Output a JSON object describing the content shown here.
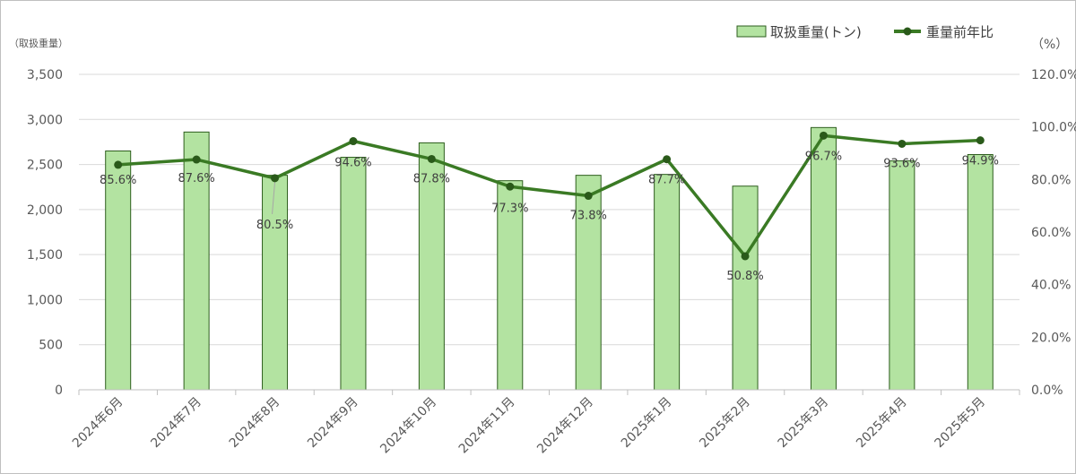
{
  "chart_data": {
    "type": "bar",
    "categories": [
      "2024年6月",
      "2024年7月",
      "2024年8月",
      "2024年9月",
      "2024年10月",
      "2024年11月",
      "2024年12月",
      "2025年1月",
      "2025年2月",
      "2025年3月",
      "2025年4月",
      "2025年5月"
    ],
    "series": [
      {
        "name": "取扱重量(トン)",
        "type": "bar",
        "axis": "left",
        "values": [
          2650,
          2860,
          2380,
          2580,
          2740,
          2320,
          2380,
          2390,
          2260,
          2910,
          2540,
          2610
        ]
      },
      {
        "name": "重量前年比",
        "type": "line",
        "axis": "right",
        "values": [
          85.6,
          87.6,
          80.5,
          94.6,
          87.8,
          77.3,
          73.8,
          87.7,
          50.8,
          96.7,
          93.6,
          94.9
        ],
        "labels": [
          "85.6%",
          "87.6%",
          "80.5%",
          "94.6%",
          "87.8%",
          "77.3%",
          "73.8%",
          "87.7%",
          "50.8%",
          "96.7%",
          "93.6%",
          "94.9%"
        ]
      }
    ],
    "ylabel_left": "（取扱重量）",
    "ylabel_right": "（%）",
    "ylim_left": [
      0,
      3500
    ],
    "ylim_right": [
      0,
      120
    ],
    "yticks_left": [
      "0",
      "500",
      "1,000",
      "1,500",
      "2,000",
      "2,500",
      "3,000",
      "3,500"
    ],
    "yticks_right": [
      "0.0%",
      "20.0%",
      "40.0%",
      "60.0%",
      "80.0%",
      "100.0%",
      "120.0%"
    ],
    "grid": true,
    "legend": "top-right",
    "colors": {
      "bar_fill": "#b3e3a1",
      "bar_stroke": "#2e5e1e",
      "line": "#3a7a24",
      "marker": "#2a5a1a",
      "grid": "#d9d9d9"
    }
  }
}
